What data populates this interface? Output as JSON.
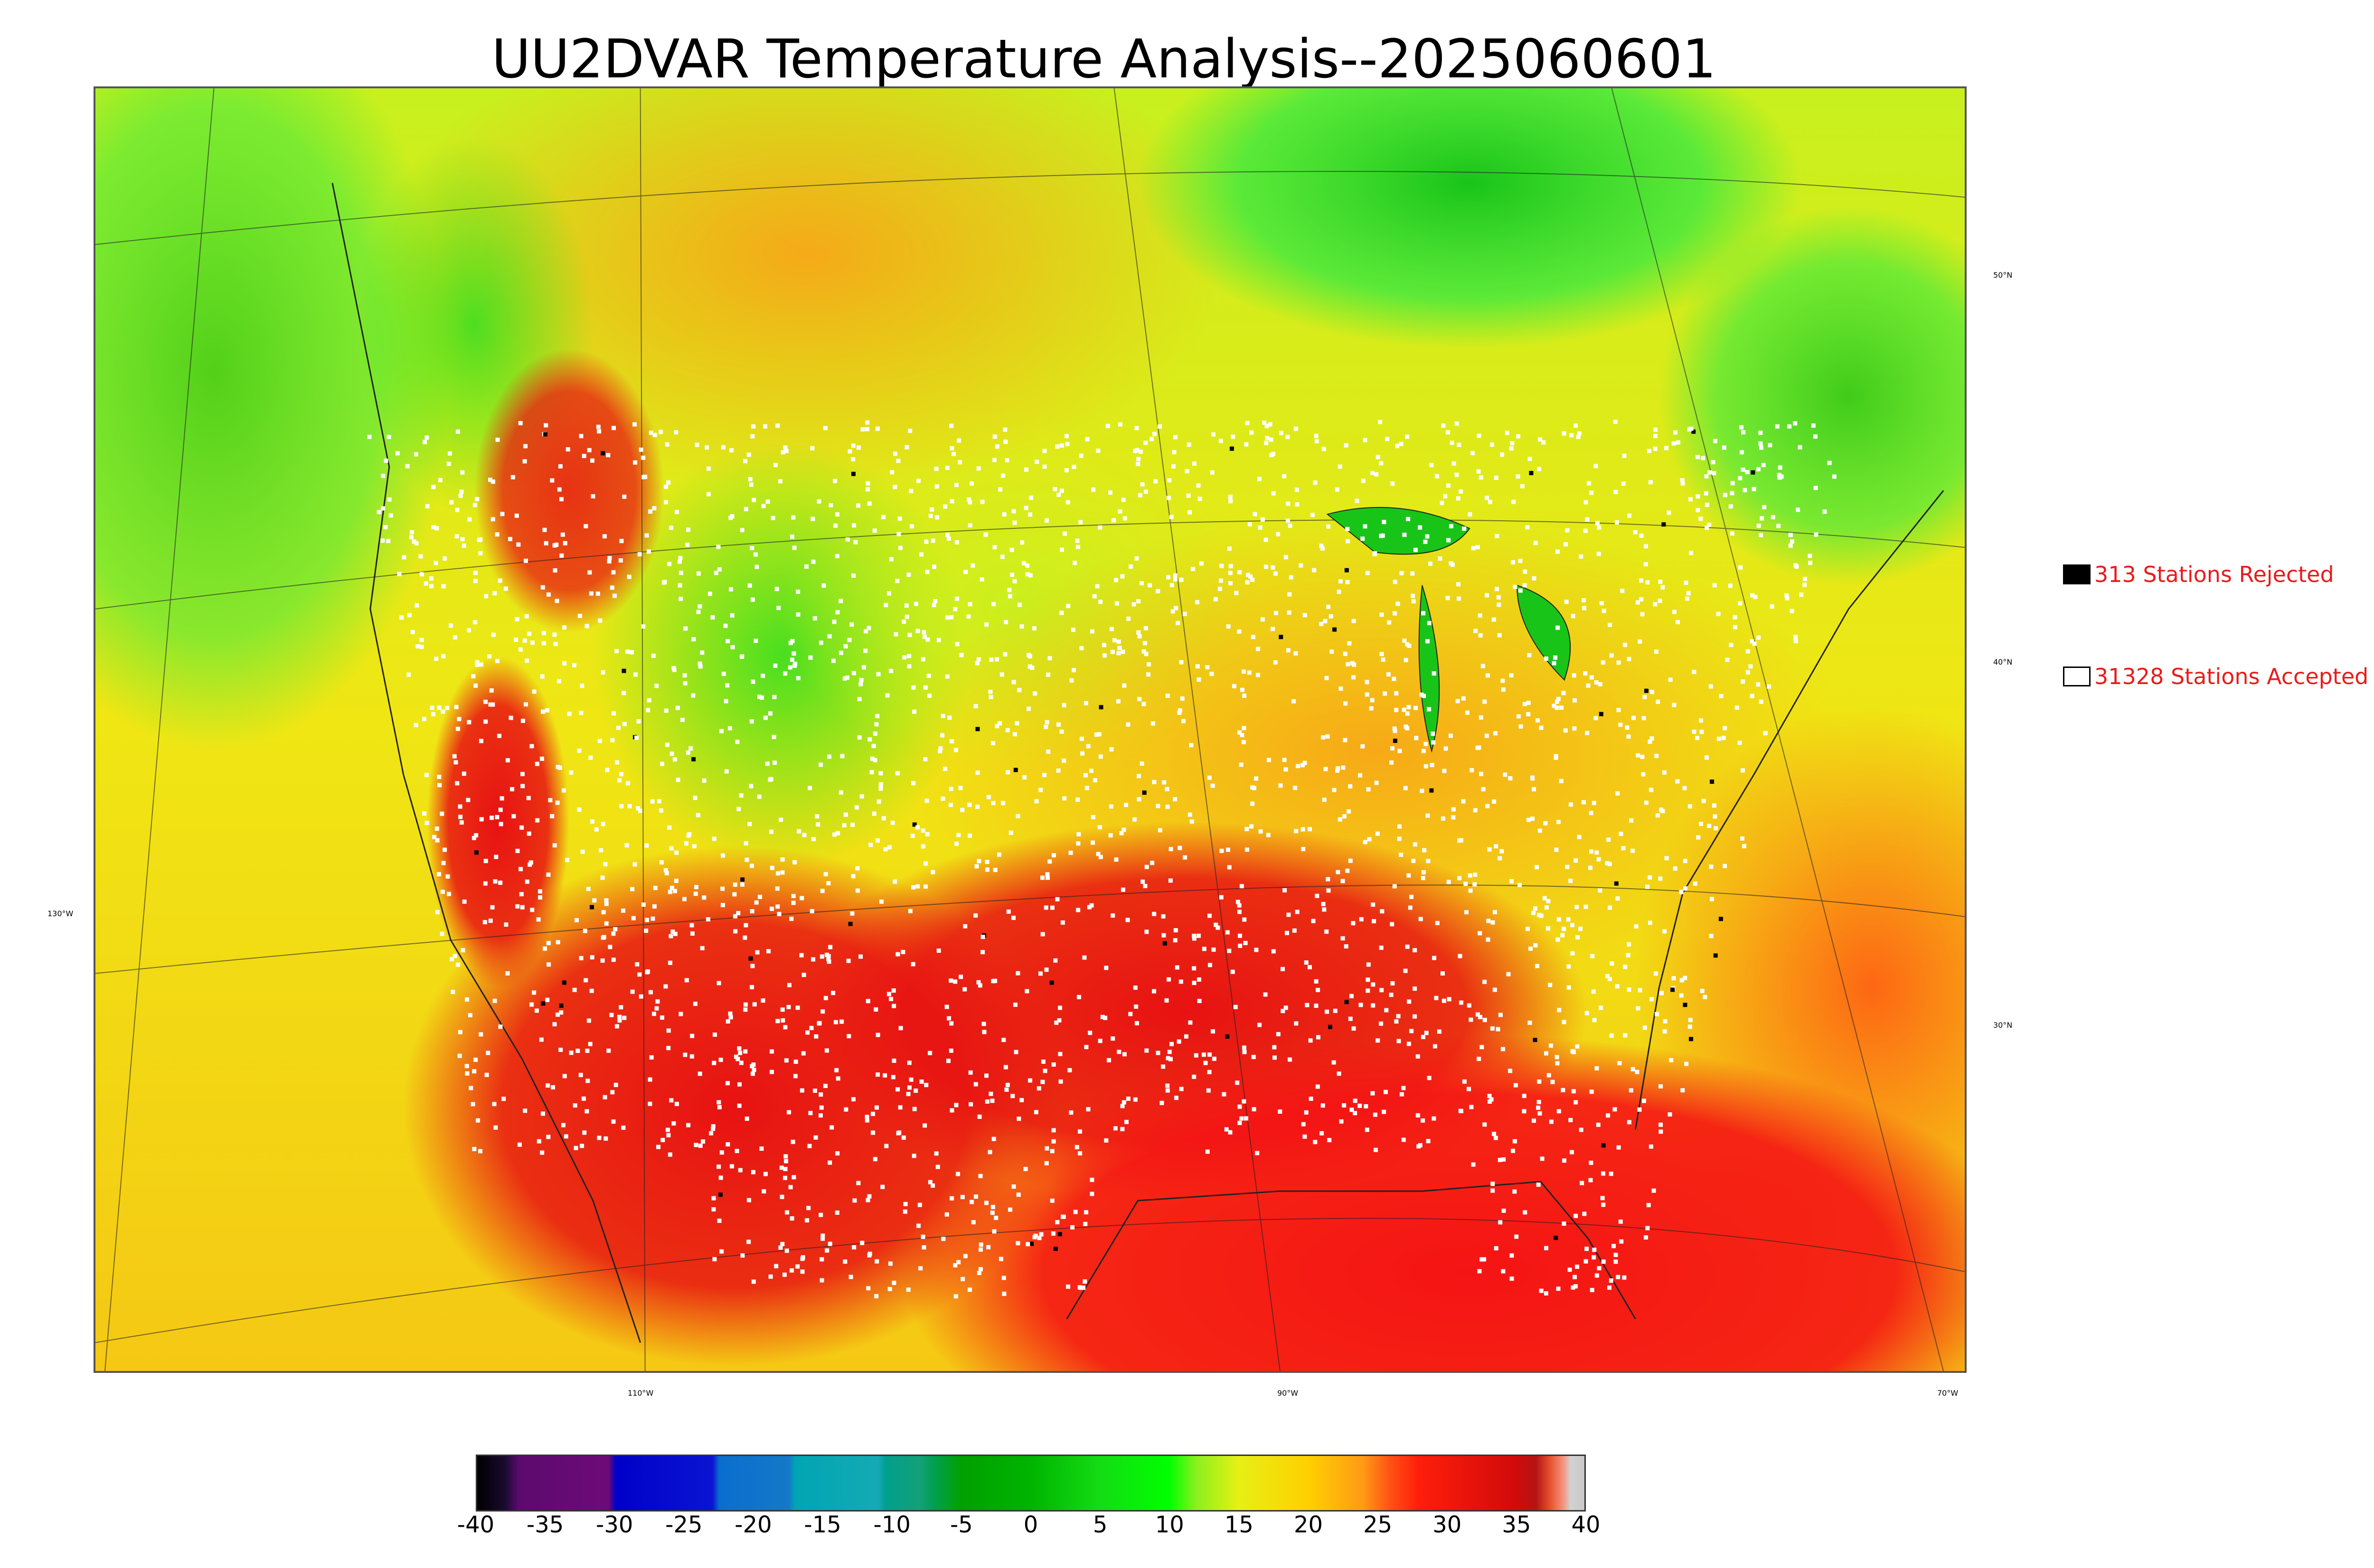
{
  "title": "UU2DVAR Temperature Analysis--2025060601",
  "map": {
    "lon_labels": [
      "130°W",
      "110°W",
      "90°W",
      "70°W"
    ],
    "lat_labels": [
      "50°N",
      "40°N",
      "30°N"
    ],
    "colors": {
      "cold_green": "#19c419",
      "cool_green": "#3fe83f",
      "yellow_green": "#c8f01e",
      "yellow": "#f0ee14",
      "orange": "#f7a617",
      "red_orange": "#ff5a14",
      "red": "#e81212",
      "station_accepted": "#ffffff",
      "station_rejected": "#000000",
      "coastline": "#222222"
    }
  },
  "legend": {
    "rejected": {
      "label": "313 Stations Rejected",
      "swatch_color": "#000000"
    },
    "accepted": {
      "label": "31328 Stations Accepted",
      "swatch_color": "#ffffff"
    }
  },
  "colorbar": {
    "min": -40,
    "max": 40,
    "tick_labels": [
      "-40",
      "-35",
      "-30",
      "-25",
      "-20",
      "-15",
      "-10",
      "-5",
      "0",
      "5",
      "10",
      "15",
      "20",
      "25",
      "30",
      "35",
      "40"
    ],
    "stops": [
      {
        "v": -40,
        "c": "#000000"
      },
      {
        "v": -38,
        "c": "#1a0a2e"
      },
      {
        "v": -37,
        "c": "#5c0a6e"
      },
      {
        "v": -30.5,
        "c": "#6e0a78"
      },
      {
        "v": -30,
        "c": "#0000c8"
      },
      {
        "v": -23,
        "c": "#0a14d2"
      },
      {
        "v": -22.5,
        "c": "#0a6ecf"
      },
      {
        "v": -17.5,
        "c": "#1478c8"
      },
      {
        "v": -17,
        "c": "#00a5b4"
      },
      {
        "v": -11,
        "c": "#14aab4"
      },
      {
        "v": -10.5,
        "c": "#00a08c"
      },
      {
        "v": -8,
        "c": "#14a078"
      },
      {
        "v": -7,
        "c": "#00a050"
      },
      {
        "v": -5,
        "c": "#00a000"
      },
      {
        "v": 0,
        "c": "#00b400"
      },
      {
        "v": 5,
        "c": "#14dc14"
      },
      {
        "v": 10,
        "c": "#00ff00"
      },
      {
        "v": 12,
        "c": "#8cf01e"
      },
      {
        "v": 15,
        "c": "#e6f014"
      },
      {
        "v": 20,
        "c": "#ffd000"
      },
      {
        "v": 24,
        "c": "#ff9a14"
      },
      {
        "v": 26,
        "c": "#ff5014"
      },
      {
        "v": 28,
        "c": "#ff1e0a"
      },
      {
        "v": 35,
        "c": "#d20a0a"
      },
      {
        "v": 36.5,
        "c": "#b41414"
      },
      {
        "v": 37.5,
        "c": "#e6502d"
      },
      {
        "v": 38.5,
        "c": "#f59682"
      },
      {
        "v": 39,
        "c": "#d2d2d2"
      },
      {
        "v": 40,
        "c": "#c8c8c8"
      }
    ]
  }
}
